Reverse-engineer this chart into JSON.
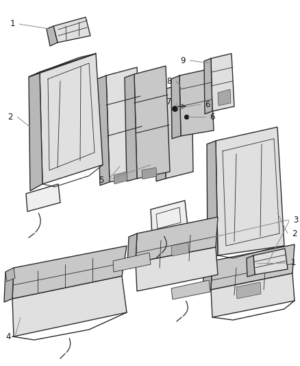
{
  "bg_color": "#ffffff",
  "lc": "#2a2a2a",
  "llc": "#888888",
  "figsize": [
    4.38,
    5.33
  ],
  "dpi": 100,
  "seat_fill": "#e0e0e0",
  "seat_dark": "#b8b8b8",
  "seat_light": "#efefef",
  "seat_shadow": "#c8c8c8"
}
